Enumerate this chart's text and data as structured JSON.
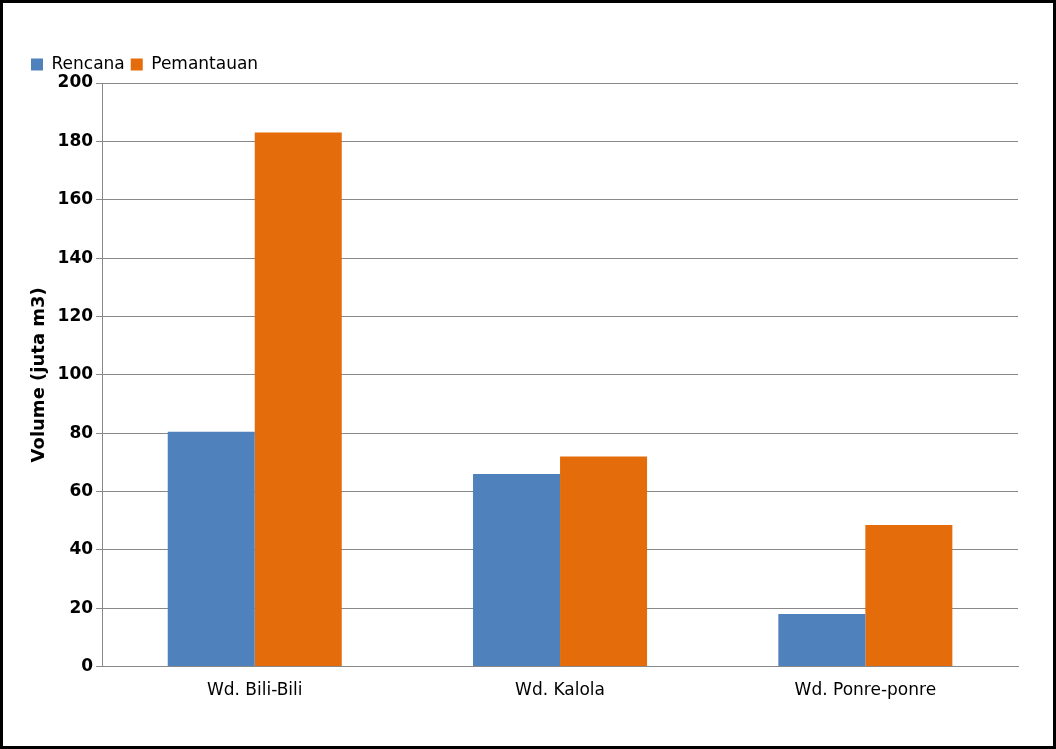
{
  "chart_data": {
    "type": "bar",
    "ylabel": "Volume (juta m3)",
    "categories": [
      "Wd. Bili-Bili",
      "Wd. Kalola",
      "Wd. Ponre-ponre"
    ],
    "series": [
      {
        "name": "Rencana",
        "color": "#4f81bd",
        "values": [
          80.5,
          66,
          18
        ]
      },
      {
        "name": "Pemantauan",
        "color": "#e46c0a",
        "values": [
          183,
          72,
          48.5
        ]
      }
    ],
    "ylim": [
      0,
      200
    ],
    "yticks": [
      0,
      20,
      40,
      60,
      80,
      100,
      120,
      140,
      160,
      180,
      200
    ],
    "grid": "y",
    "legend": "top left"
  }
}
